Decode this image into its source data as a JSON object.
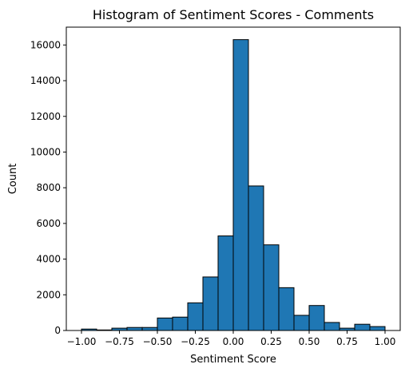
{
  "chart_data": {
    "type": "bar",
    "title": "Histogram of Sentiment Scores - Comments",
    "xlabel": "Sentiment Score",
    "ylabel": "Count",
    "xlim": [
      -1.1,
      1.1
    ],
    "ylim": [
      0,
      17000
    ],
    "grid": false,
    "bar_color": "#1f77b4",
    "edge_color": "#000000",
    "bin_edges": [
      -1.0,
      -0.9,
      -0.8,
      -0.7,
      -0.6,
      -0.5,
      -0.4,
      -0.3,
      -0.2,
      -0.1,
      0.0,
      0.1,
      0.2,
      0.3,
      0.4,
      0.5,
      0.6,
      0.7,
      0.8,
      0.9,
      1.0
    ],
    "values": [
      80,
      30,
      130,
      170,
      170,
      700,
      750,
      1550,
      3000,
      5300,
      16300,
      8100,
      4800,
      2400,
      850,
      1400,
      450,
      130,
      350,
      220
    ],
    "xticks": [
      -1.0,
      -0.75,
      -0.5,
      -0.25,
      0.0,
      0.25,
      0.5,
      0.75,
      1.0
    ],
    "xtick_labels": [
      "−1.00",
      "−0.75",
      "−0.50",
      "−0.25",
      "0.00",
      "0.25",
      "0.50",
      "0.75",
      "1.00"
    ],
    "yticks": [
      0,
      2000,
      4000,
      6000,
      8000,
      10000,
      12000,
      14000,
      16000
    ],
    "ytick_labels": [
      "0",
      "2000",
      "4000",
      "6000",
      "8000",
      "10000",
      "12000",
      "14000",
      "16000"
    ]
  }
}
